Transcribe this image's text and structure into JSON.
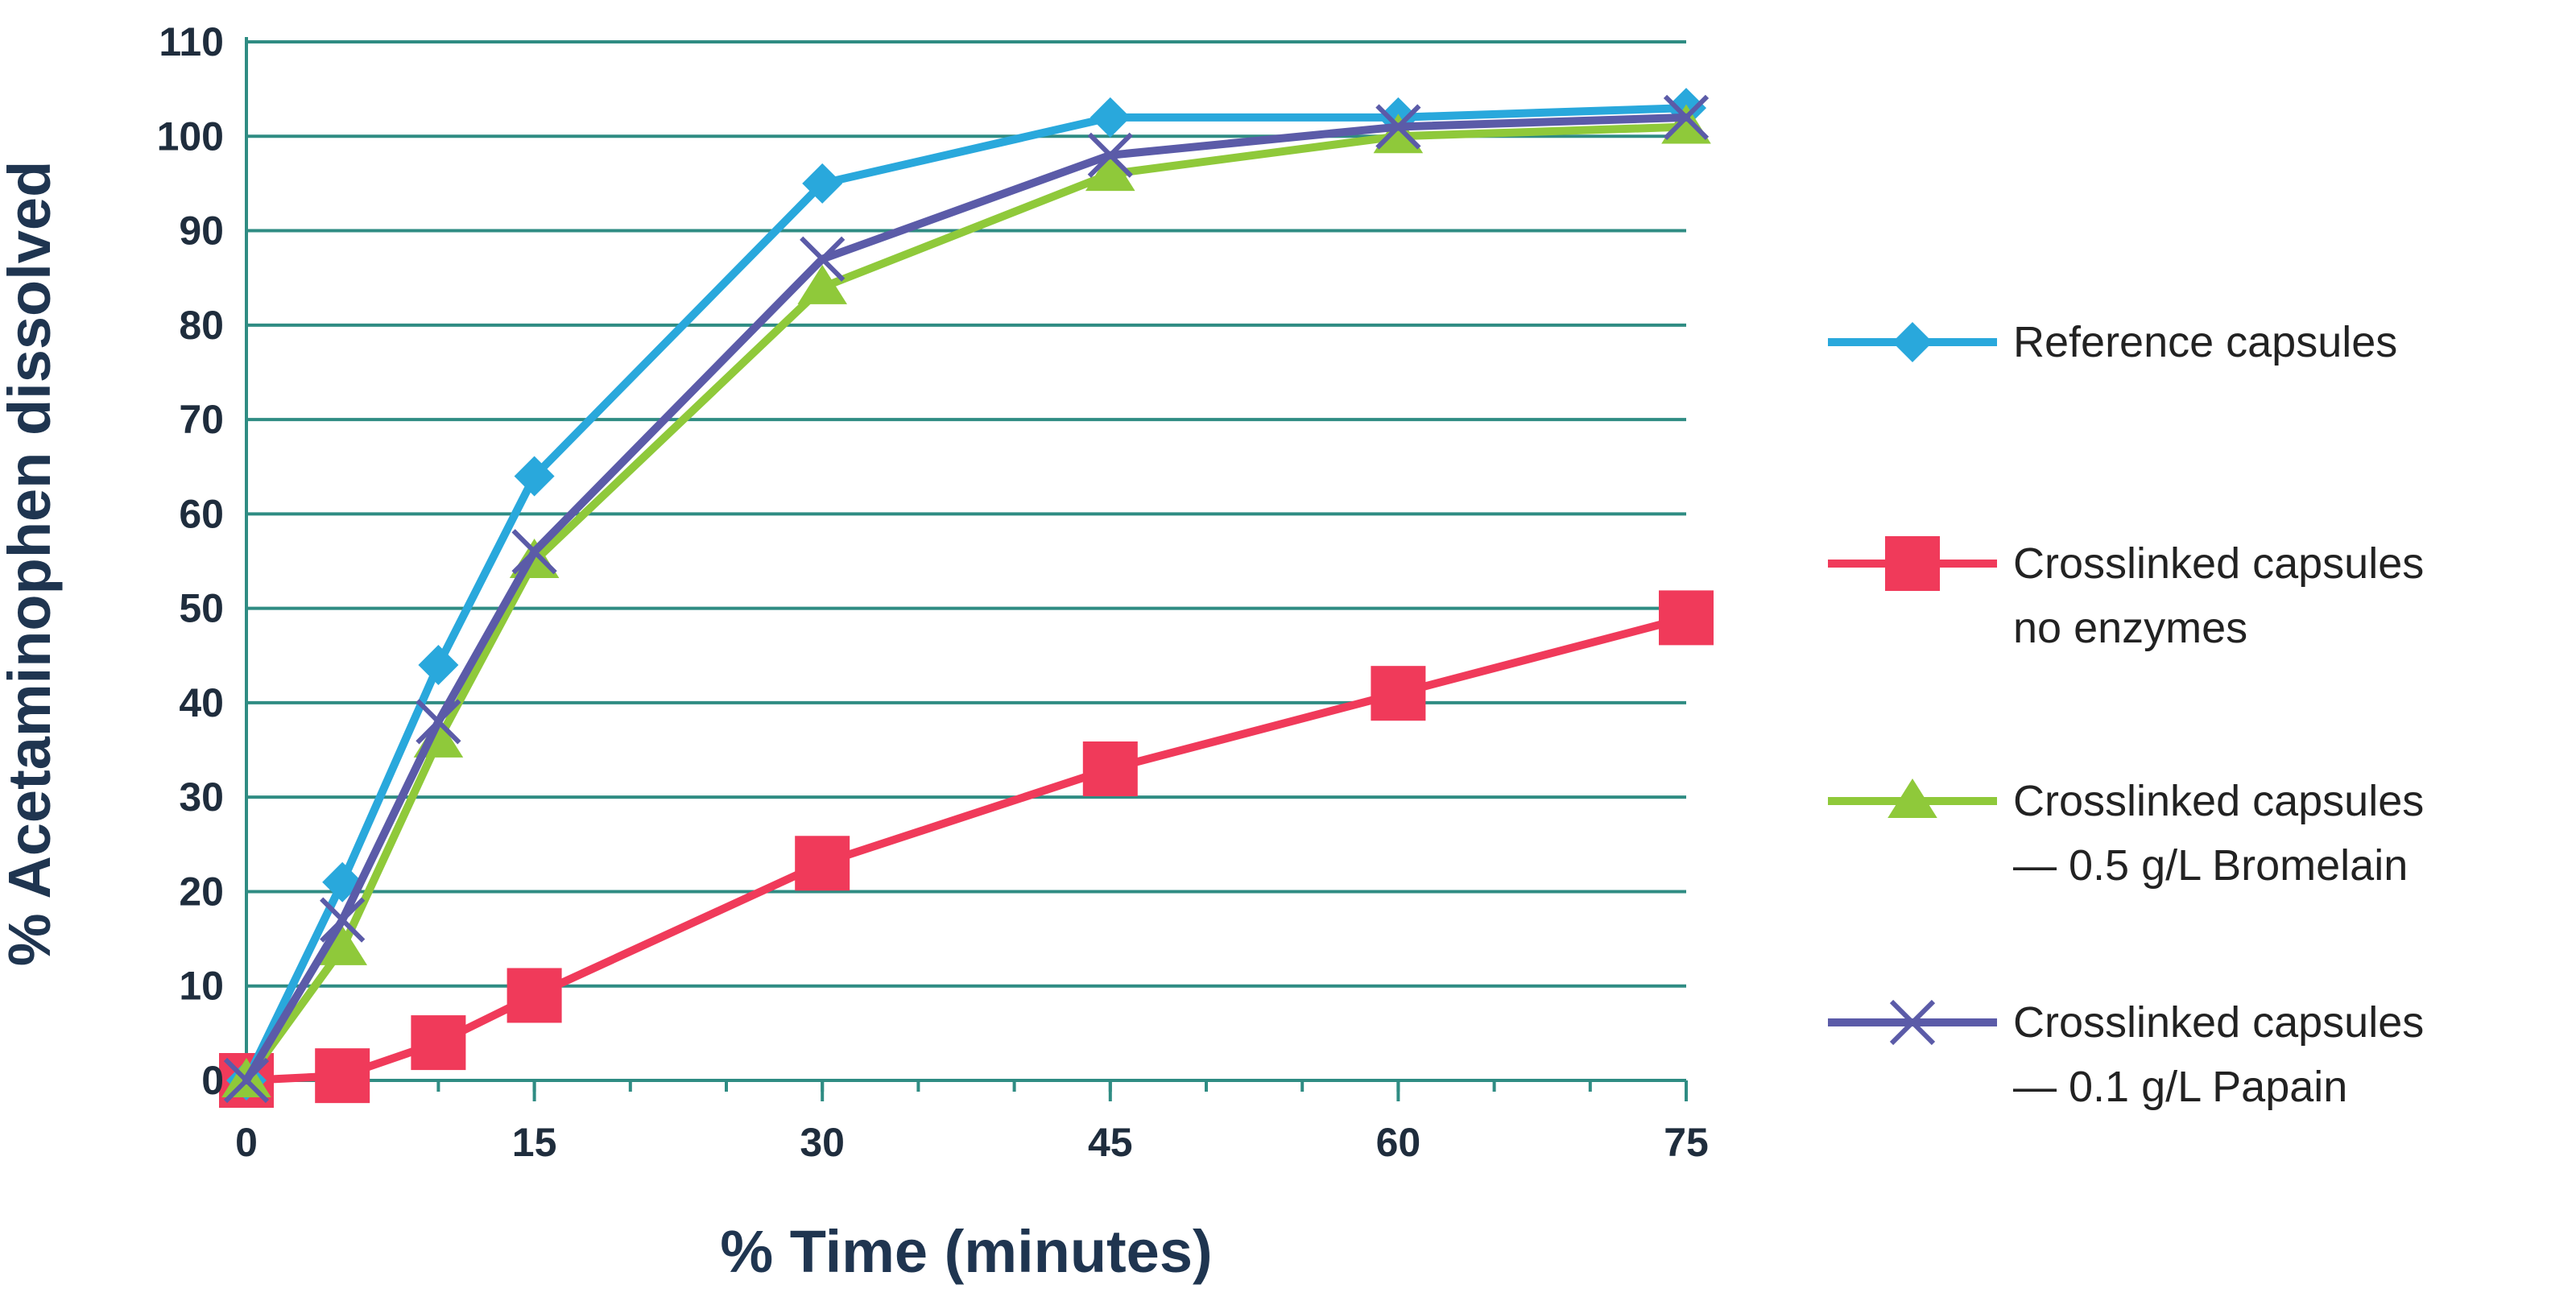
{
  "chart_data": {
    "type": "line",
    "title": "",
    "xlabel": "% Time (minutes)",
    "ylabel": "% Acetaminophen dissolved",
    "xlim": [
      0,
      75
    ],
    "ylim": [
      0,
      110
    ],
    "x_ticks": [
      0,
      15,
      30,
      45,
      60,
      75
    ],
    "y_ticks": [
      0,
      10,
      20,
      30,
      40,
      50,
      60,
      70,
      80,
      90,
      100,
      110
    ],
    "grid": "horizontal",
    "legend_position": "right",
    "series": [
      {
        "name": "Reference capsules",
        "legend_lines": [
          "Reference capsules"
        ],
        "color": "#29a8dc",
        "marker": "diamond",
        "x": [
          0,
          5,
          10,
          15,
          30,
          45,
          60,
          75
        ],
        "y": [
          0,
          21,
          44,
          64,
          95,
          102,
          102,
          103
        ]
      },
      {
        "name": "Crosslinked capsules no enzymes",
        "legend_lines": [
          "Crosslinked capsules",
          "no enzymes"
        ],
        "color": "#f03a5a",
        "marker": "square",
        "x": [
          0,
          5,
          10,
          15,
          30,
          45,
          60,
          75
        ],
        "y": [
          0,
          0.5,
          4,
          9,
          23,
          33,
          41,
          49
        ]
      },
      {
        "name": "Crosslinked capsules — 0.5 g/L Bromelain",
        "legend_lines": [
          "Crosslinked capsules",
          "— 0.5 g/L Bromelain"
        ],
        "color": "#8fc93a",
        "marker": "triangle",
        "x": [
          0,
          5,
          10,
          15,
          30,
          45,
          60,
          75
        ],
        "y": [
          0,
          14,
          36,
          55,
          84,
          96,
          100,
          101
        ]
      },
      {
        "name": "Crosslinked capsules — 0.1 g/L Papain",
        "legend_lines": [
          "Crosslinked capsules",
          "— 0.1 g/L Papain"
        ],
        "color": "#5b5ba8",
        "marker": "x",
        "x": [
          0,
          5,
          10,
          15,
          30,
          45,
          60,
          75
        ],
        "y": [
          0,
          17,
          38,
          56,
          87,
          98,
          101,
          102
        ]
      }
    ]
  }
}
